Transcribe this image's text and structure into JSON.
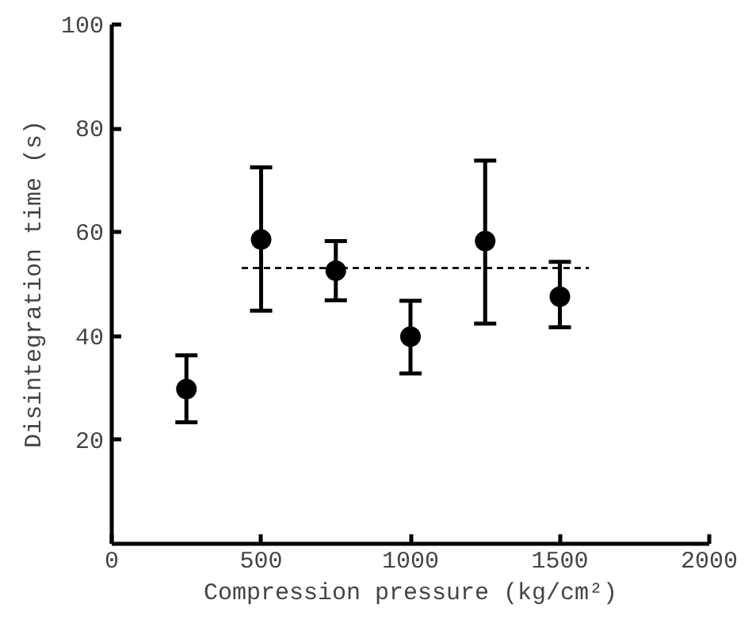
{
  "chart_data": {
    "type": "scatter",
    "xlabel": "Compression pressure (kg/cm²)",
    "ylabel": "Disintegration time (s)",
    "x": [
      250,
      500,
      750,
      1000,
      1250,
      1500
    ],
    "series": [
      {
        "color": "#000000",
        "marker": "circle",
        "values": [
          29.8,
          58.6,
          52.6,
          39.9,
          58.3,
          47.6
        ],
        "errors": [
          [
            23.4,
            36.3
          ],
          [
            44.9,
            72.5
          ],
          [
            46.9,
            58.3
          ],
          [
            32.8,
            46.8
          ],
          [
            42.4,
            73.8
          ],
          [
            41.7,
            54.3
          ]
        ]
      },
      {
        "type": "line",
        "color": "#000000",
        "line_style": "dashed",
        "marker": "none",
        "x": [
          435,
          1597
        ],
        "values": [
          53.1,
          53.1
        ]
      }
    ],
    "xlim": [
      0,
      2000
    ],
    "ylim": [
      0,
      100
    ],
    "xticks": [
      0,
      500,
      1000,
      1500,
      2000
    ],
    "yticks": [
      20,
      40,
      60,
      80,
      100
    ],
    "grid": false
  }
}
